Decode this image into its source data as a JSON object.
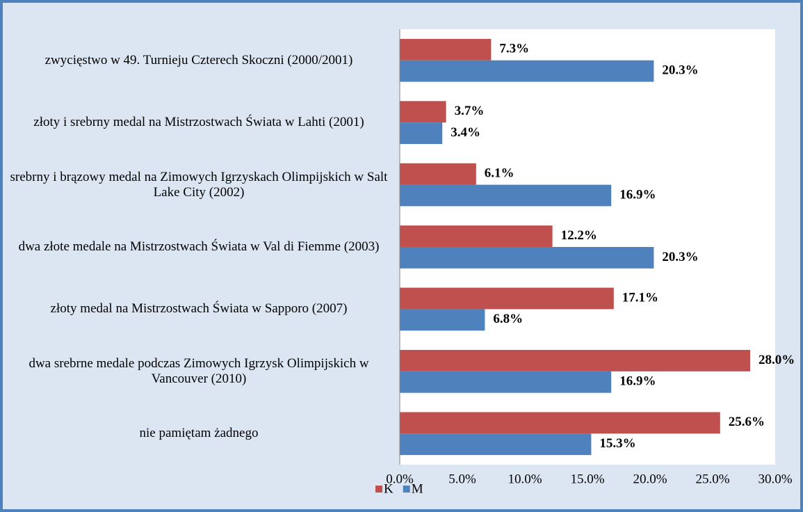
{
  "chart_data": {
    "type": "barh",
    "categories": [
      "zwycięstwo w 49. Turnieju Czterech Skoczni (2000/2001)",
      "złoty i srebrny medal na Mistrzostwach Świata w Lahti (2001)",
      "srebrny i brązowy medal na Zimowych Igrzyskach Olimpijskich w Salt Lake City (2002)",
      "dwa złote medale na Mistrzostwach Świata w Val di Fiemme (2003)",
      "złoty medal na Mistrzostwach Świata w Sapporo (2007)",
      "dwa srebrne medale podczas Zimowych Igrzysk Olimpijskich w Vancouver (2010)",
      "nie pamiętam żadnego"
    ],
    "series": [
      {
        "name": "K",
        "color": "#c0504d",
        "values": [
          7.3,
          3.7,
          6.1,
          12.2,
          17.1,
          28.0,
          25.6
        ],
        "value_labels": [
          "7.3%",
          "3.7%",
          "6.1%",
          "12.2%",
          "17.1%",
          "28.0%",
          "25.6%"
        ]
      },
      {
        "name": "M",
        "color": "#4f81bd",
        "values": [
          20.3,
          3.4,
          16.9,
          20.3,
          6.8,
          16.9,
          15.3
        ],
        "value_labels": [
          "20.3%",
          "3.4%",
          "16.9%",
          "20.3%",
          "6.8%",
          "16.9%",
          "15.3%"
        ]
      }
    ],
    "xlim": [
      0,
      30
    ],
    "xticks": [
      {
        "value": 0,
        "label": "0.0%"
      },
      {
        "value": 5,
        "label": "5.0%"
      },
      {
        "value": 10,
        "label": "10.0%"
      },
      {
        "value": 15,
        "label": "15.0%"
      },
      {
        "value": 20,
        "label": "20.0%"
      },
      {
        "value": 25,
        "label": "25.0%"
      },
      {
        "value": 30,
        "label": "30.0%"
      }
    ],
    "legend": "bottom"
  }
}
